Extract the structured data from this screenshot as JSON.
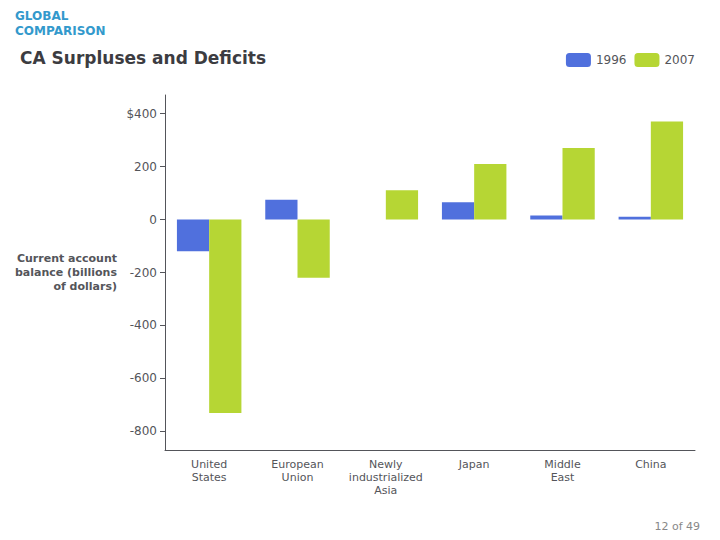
{
  "chart_data": {
    "type": "bar",
    "title": "CA Surpluses and Deficits",
    "ylabel": "Current account\nbalance (billions\nof dollars)",
    "annotations": [
      "GLOBAL\nCOMPARISON",
      "12 of 49"
    ],
    "categories": [
      "United\nStates",
      "European\nUnion",
      "Newly\nindustrialized\nAsia",
      "Japan",
      "Middle\nEast",
      "China"
    ],
    "series": [
      {
        "name": "1996",
        "values": [
          -120,
          75,
          0,
          65,
          15,
          10
        ]
      },
      {
        "name": "2007",
        "values": [
          -730,
          -220,
          110,
          210,
          270,
          370
        ]
      }
    ],
    "ylim": [
      -870,
      470
    ],
    "yticks": [
      -800,
      -600,
      -400,
      -200,
      0,
      200,
      {
        "value": 400,
        "label": "$400"
      }
    ],
    "grid": false,
    "legend": "upper right"
  }
}
